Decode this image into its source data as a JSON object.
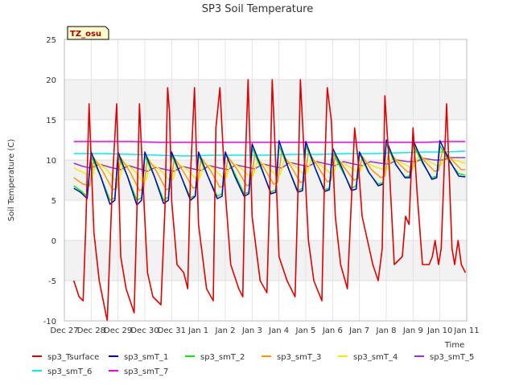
{
  "chart_data": {
    "type": "line",
    "title": "SP3 Soil Temperature",
    "xlabel": "Time",
    "ylabel": "Soil Temperature (C)",
    "ylim": [
      -10,
      25
    ],
    "yticks": [
      -10,
      -5,
      0,
      5,
      10,
      15,
      20,
      25
    ],
    "xlim": [
      0,
      15
    ],
    "xtick_labels": [
      "Dec 27",
      "Dec 28",
      "Dec 29",
      "Dec 30",
      "Dec 31",
      "Jan 1",
      "Jan 2",
      "Jan 3",
      "Jan 4",
      "Jan 5",
      "Jan 6",
      "Jan 7",
      "Jan 8",
      "Jan 9",
      "Jan 10",
      "Jan 11"
    ],
    "annotation": "TZ_osu",
    "legend_position": "bottom",
    "series": [
      {
        "name": "sp3_Tsurface",
        "color": "#e00000",
        "x": [
          0.35,
          0.55,
          0.7,
          0.8,
          0.92,
          1.0,
          1.1,
          1.3,
          1.6,
          1.8,
          1.95,
          2.1,
          2.3,
          2.6,
          2.7,
          2.8,
          2.95,
          3.1,
          3.3,
          3.6,
          3.75,
          3.85,
          3.92,
          4.0,
          4.2,
          4.45,
          4.6,
          4.7,
          4.85,
          5.0,
          5.3,
          5.55,
          5.65,
          5.8,
          6.0,
          6.2,
          6.5,
          6.65,
          6.75,
          6.85,
          7.0,
          7.3,
          7.55,
          7.65,
          7.75,
          7.85,
          8.0,
          8.3,
          8.6,
          8.7,
          8.8,
          8.95,
          9.1,
          9.3,
          9.6,
          9.7,
          9.8,
          9.95,
          10.1,
          10.3,
          10.55,
          10.7,
          10.82,
          10.95,
          11.1,
          11.3,
          11.5,
          11.7,
          11.85,
          11.95,
          12.1,
          12.3,
          12.6,
          12.72,
          12.85,
          13.0,
          13.15,
          13.35,
          13.6,
          13.72,
          13.82,
          13.95,
          14.05,
          14.25,
          14.45,
          14.55,
          14.68,
          14.8,
          14.95
        ],
        "values": [
          -5,
          -7,
          -7.5,
          2,
          17,
          10,
          1,
          -5,
          -10,
          8,
          17,
          -2,
          -6,
          -9,
          3,
          17,
          6,
          -4,
          -7,
          -8,
          4,
          19,
          16,
          5,
          -3,
          -4,
          -6,
          8,
          19,
          2,
          -6,
          -7.5,
          14,
          19,
          6,
          -3,
          -6,
          -7,
          10,
          20,
          3,
          -5,
          -6.5,
          5,
          20,
          12,
          -2,
          -5,
          -7,
          5,
          20,
          10,
          0,
          -5,
          -7.5,
          8,
          19,
          15,
          3,
          -3,
          -6,
          5,
          14,
          10,
          3,
          0,
          -3,
          -5,
          -1,
          18,
          10,
          -3,
          -2,
          3,
          2,
          14,
          6,
          -3,
          -3,
          -2,
          0,
          -3,
          -1,
          17,
          -1,
          -3,
          0,
          -3,
          -4
        ]
      },
      {
        "name": "sp3_smT_1",
        "color": "#0000cc",
        "x": [
          0.35,
          0.6,
          0.85,
          1.0,
          1.35,
          1.7,
          1.88,
          2.0,
          2.35,
          2.7,
          2.88,
          3.0,
          3.35,
          3.7,
          3.88,
          4.0,
          4.35,
          4.7,
          4.88,
          5.0,
          5.35,
          5.7,
          5.88,
          6.0,
          6.35,
          6.7,
          6.88,
          7.0,
          7.35,
          7.7,
          7.88,
          8.0,
          8.35,
          8.7,
          8.88,
          9.0,
          9.35,
          9.7,
          9.88,
          10.0,
          10.35,
          10.7,
          10.88,
          11.0,
          11.35,
          11.7,
          11.88,
          12.0,
          12.35,
          12.7,
          12.88,
          13.0,
          13.35,
          13.7,
          13.88,
          14.0,
          14.35,
          14.7,
          14.95
        ],
        "values": [
          6.5,
          6,
          5.2,
          11,
          8,
          4.5,
          5,
          11,
          8,
          4.4,
          5,
          11,
          8,
          4.6,
          5,
          11,
          8,
          5,
          5.5,
          11,
          8,
          5.2,
          5.5,
          11,
          8,
          5.5,
          5.8,
          12,
          9,
          5.8,
          6,
          12.4,
          9,
          6,
          6.2,
          12.3,
          9,
          6.1,
          6.3,
          11.5,
          9,
          6.2,
          6.4,
          11,
          8.5,
          6.8,
          7,
          12.5,
          9.5,
          7.8,
          7.8,
          12.5,
          9.8,
          7.6,
          7.8,
          12.4,
          10,
          8,
          7.9
        ]
      },
      {
        "name": "sp3_smT_2",
        "color": "#00ee00",
        "x": [
          0.35,
          0.6,
          0.85,
          1.0,
          1.35,
          1.7,
          1.88,
          2.0,
          2.35,
          2.7,
          2.88,
          3.0,
          3.35,
          3.7,
          3.88,
          4.0,
          4.35,
          4.7,
          4.88,
          5.0,
          5.35,
          5.7,
          5.88,
          6.0,
          6.35,
          6.7,
          6.88,
          7.0,
          7.35,
          7.7,
          7.88,
          8.0,
          8.35,
          8.7,
          8.88,
          9.0,
          9.35,
          9.7,
          9.88,
          10.0,
          10.35,
          10.7,
          10.88,
          11.0,
          11.35,
          11.7,
          11.88,
          12.0,
          12.35,
          12.7,
          12.88,
          13.0,
          13.35,
          13.7,
          13.88,
          14.0,
          14.35,
          14.7,
          14.95
        ],
        "values": [
          6.8,
          6.2,
          5.5,
          10.5,
          8,
          5,
          5.3,
          10.5,
          8,
          5,
          5.3,
          10.5,
          8,
          5,
          5.4,
          10.6,
          8,
          5.3,
          5.6,
          10.6,
          8,
          5.5,
          5.8,
          10.8,
          8.3,
          5.8,
          6,
          11.5,
          8.8,
          6,
          6.3,
          11.8,
          9,
          6.2,
          6.5,
          11.8,
          9,
          6.3,
          6.5,
          11,
          8.7,
          6.5,
          6.8,
          10.8,
          8.4,
          7,
          7.2,
          12,
          9.4,
          7.9,
          8,
          12,
          9.6,
          7.8,
          8,
          11.8,
          9.8,
          8.3,
          8.1
        ]
      },
      {
        "name": "sp3_smT_3",
        "color": "#ff9900",
        "x": [
          0.35,
          0.7,
          0.95,
          1.1,
          1.45,
          1.8,
          1.95,
          2.1,
          2.45,
          2.8,
          2.95,
          3.1,
          3.45,
          3.8,
          3.95,
          4.1,
          4.45,
          4.8,
          4.95,
          5.1,
          5.45,
          5.8,
          5.95,
          6.1,
          6.45,
          6.8,
          6.95,
          7.1,
          7.45,
          7.8,
          7.95,
          8.1,
          8.45,
          8.8,
          8.95,
          9.1,
          9.45,
          9.8,
          9.95,
          10.1,
          10.45,
          10.8,
          10.95,
          11.1,
          11.45,
          11.8,
          11.95,
          12.1,
          12.45,
          12.8,
          12.95,
          13.1,
          13.45,
          13.8,
          13.95,
          14.1,
          14.45,
          14.8,
          14.95
        ],
        "values": [
          7.8,
          7,
          6.8,
          10.3,
          8.5,
          6.3,
          6.5,
          10.3,
          8.5,
          6.2,
          6.4,
          10.3,
          8.5,
          6.3,
          6.5,
          10.3,
          8.5,
          6.5,
          6.7,
          10.3,
          8.7,
          6.6,
          6.8,
          10.4,
          8.8,
          6.8,
          7,
          10.8,
          9,
          7,
          7.2,
          11,
          9.2,
          7.2,
          7.4,
          11,
          9.2,
          7.3,
          7.5,
          10.6,
          9,
          7.5,
          7.7,
          10.5,
          8.8,
          7.8,
          8,
          11.2,
          9.6,
          8.5,
          8.6,
          11.4,
          9.8,
          8.6,
          8.7,
          11.3,
          10,
          8.8,
          8.8
        ]
      },
      {
        "name": "sp3_smT_4",
        "color": "#eeee00",
        "x": [
          0.35,
          0.8,
          1.05,
          1.2,
          1.55,
          1.9,
          2.05,
          2.2,
          2.55,
          2.9,
          3.05,
          3.2,
          3.55,
          3.9,
          4.05,
          4.2,
          4.55,
          4.9,
          5.05,
          5.2,
          5.55,
          5.9,
          6.05,
          6.2,
          6.55,
          6.9,
          7.05,
          7.2,
          7.55,
          7.9,
          8.05,
          8.2,
          8.55,
          8.9,
          9.05,
          9.2,
          9.55,
          9.9,
          10.05,
          10.2,
          10.55,
          10.9,
          11.05,
          11.2,
          11.55,
          11.9,
          12.05,
          12.2,
          12.55,
          12.9,
          13.05,
          13.2,
          13.55,
          13.9,
          14.05,
          14.2,
          14.55,
          14.95
        ],
        "values": [
          9,
          8.3,
          8,
          9.8,
          8.9,
          7.5,
          7.6,
          9.7,
          8.9,
          7.4,
          7.5,
          9.6,
          8.9,
          7.5,
          7.6,
          9.6,
          8.9,
          7.7,
          7.8,
          9.6,
          9,
          7.8,
          7.9,
          9.7,
          9.1,
          8,
          8.1,
          9.9,
          9.2,
          8.1,
          8.2,
          10.1,
          9.4,
          8.3,
          8.4,
          10.1,
          9.4,
          8.4,
          8.5,
          9.9,
          9.3,
          8.6,
          8.7,
          9.8,
          9.2,
          8.8,
          8.9,
          10.2,
          9.7,
          9.1,
          9.2,
          10.4,
          9.9,
          9.3,
          9.4,
          10.4,
          10,
          9.6
        ]
      },
      {
        "name": "sp3_smT_5",
        "color": "#9933cc",
        "x": [
          0.35,
          0.7,
          1.0,
          1.3,
          1.7,
          2.1,
          2.4,
          2.8,
          3.1,
          3.4,
          3.8,
          4.1,
          4.4,
          4.8,
          5.1,
          5.4,
          5.8,
          6.1,
          6.4,
          6.8,
          7.1,
          7.4,
          7.8,
          8.1,
          8.4,
          8.8,
          9.1,
          9.4,
          9.8,
          10.1,
          10.4,
          10.8,
          11.1,
          11.4,
          11.8,
          12.1,
          12.4,
          12.8,
          13.1,
          13.4,
          13.8,
          14.1,
          14.4,
          14.95
        ],
        "values": [
          9.6,
          9.2,
          9,
          9.5,
          9.1,
          8.8,
          9.3,
          8.9,
          8.6,
          9.1,
          8.8,
          8.6,
          9.2,
          8.9,
          8.7,
          9.3,
          9,
          8.8,
          9.4,
          9.1,
          8.9,
          9.5,
          9.2,
          9,
          9.7,
          9.4,
          9.2,
          9.8,
          9.5,
          9.3,
          9.8,
          9.5,
          9.3,
          9.8,
          9.6,
          9.5,
          10,
          9.8,
          9.8,
          10.2,
          10,
          10,
          10.3,
          10.3
        ]
      },
      {
        "name": "sp3_smT_6",
        "color": "#00eeee",
        "x": [
          0.35,
          1.5,
          2.5,
          3.5,
          4.5,
          5.5,
          6.5,
          7.5,
          8.5,
          9.5,
          10.5,
          11.5,
          12.5,
          13.5,
          14.2,
          14.95
        ],
        "values": [
          10.8,
          10.8,
          10.7,
          10.6,
          10.5,
          10.6,
          10.6,
          10.6,
          10.7,
          10.7,
          10.8,
          10.8,
          10.9,
          11,
          11,
          11.1
        ]
      },
      {
        "name": "sp3_smT_7",
        "color": "#ee00ee",
        "x": [
          0.35,
          1.5,
          2.5,
          3.5,
          4.5,
          5.5,
          6.5,
          7.5,
          8.5,
          9.5,
          10.5,
          11.5,
          12.5,
          13.5,
          14.2,
          14.95
        ],
        "values": [
          12.3,
          12.3,
          12.3,
          12.2,
          12.2,
          12.2,
          12.2,
          12.2,
          12.2,
          12.2,
          12.2,
          12.2,
          12.2,
          12.2,
          12.3,
          12.3
        ]
      }
    ]
  }
}
